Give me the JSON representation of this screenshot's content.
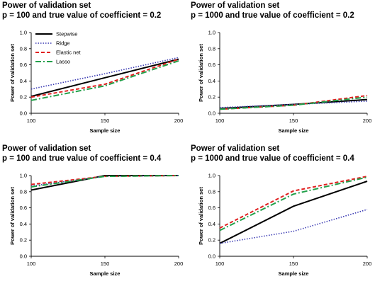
{
  "series_styles": [
    {
      "name": "Stepwise",
      "color": "#000000",
      "dash": "none",
      "width": 2
    },
    {
      "name": "Ridge",
      "color": "#3b3bb3",
      "dash": "1.5,2",
      "width": 1.6
    },
    {
      "name": "Elastic net",
      "color": "#e02020",
      "dash": "5,3",
      "width": 2
    },
    {
      "name": "Lasso",
      "color": "#22a04a",
      "dash": "8,3,2,3",
      "width": 2
    }
  ],
  "chart_data": [
    {
      "type": "line",
      "title": "Power of validation set",
      "subtitle": "p = 100 and true value of coefficient = 0.2",
      "xlabel": "Sample size",
      "ylabel": "Power of validation set",
      "x": [
        100,
        150,
        200
      ],
      "xlim": [
        100,
        200
      ],
      "ylim": [
        0,
        1.0
      ],
      "yticks": [
        "0.0",
        "0.2",
        "0.4",
        "0.6",
        "0.8",
        "1.0"
      ],
      "legend": "top-left",
      "series": [
        {
          "name": "Stepwise",
          "values": [
            0.21,
            0.44,
            0.67
          ]
        },
        {
          "name": "Ridge",
          "values": [
            0.3,
            0.49,
            0.69
          ]
        },
        {
          "name": "Elastic net",
          "values": [
            0.2,
            0.36,
            0.67
          ]
        },
        {
          "name": "Lasso",
          "values": [
            0.16,
            0.34,
            0.65
          ]
        }
      ]
    },
    {
      "type": "line",
      "title": "Power of validation set",
      "subtitle": "p = 1000 and true value of coefficient = 0.2",
      "xlabel": "Sample size",
      "ylabel": "Power of validation set",
      "x": [
        100,
        150,
        200
      ],
      "xlim": [
        100,
        200
      ],
      "ylim": [
        0,
        1.0
      ],
      "yticks": [
        "0.0",
        "0.2",
        "0.4",
        "0.6",
        "0.8",
        "1.0"
      ],
      "legend": "none",
      "series": [
        {
          "name": "Stepwise",
          "values": [
            0.06,
            0.11,
            0.17
          ]
        },
        {
          "name": "Ridge",
          "values": [
            0.07,
            0.11,
            0.15
          ]
        },
        {
          "name": "Elastic net",
          "values": [
            0.05,
            0.1,
            0.22
          ]
        },
        {
          "name": "Lasso",
          "values": [
            0.05,
            0.1,
            0.2
          ]
        }
      ]
    },
    {
      "type": "line",
      "title": "Power of validation set",
      "subtitle": "p = 100 and true value of coefficient = 0.4",
      "xlabel": "Sample size",
      "ylabel": "Power of validation set",
      "x": [
        100,
        150,
        200
      ],
      "xlim": [
        100,
        200
      ],
      "ylim": [
        0,
        1.0
      ],
      "yticks": [
        "0.0",
        "0.2",
        "0.4",
        "0.6",
        "0.8",
        "1.0"
      ],
      "legend": "none",
      "series": [
        {
          "name": "Stepwise",
          "values": [
            0.82,
            1.0,
            1.0
          ]
        },
        {
          "name": "Ridge",
          "values": [
            0.87,
            0.99,
            1.0
          ]
        },
        {
          "name": "Elastic net",
          "values": [
            0.89,
            0.99,
            1.0
          ]
        },
        {
          "name": "Lasso",
          "values": [
            0.86,
            0.99,
            1.0
          ]
        }
      ]
    },
    {
      "type": "line",
      "title": "Power of validation set",
      "subtitle": "p = 1000 and true value of coefficient = 0.4",
      "xlabel": "Sample size",
      "ylabel": "Power of validation set",
      "x": [
        100,
        150,
        200
      ],
      "xlim": [
        100,
        200
      ],
      "ylim": [
        0,
        1.0
      ],
      "yticks": [
        "0.0",
        "0.2",
        "0.4",
        "0.6",
        "0.8",
        "1.0"
      ],
      "legend": "none",
      "series": [
        {
          "name": "Stepwise",
          "values": [
            0.16,
            0.62,
            0.93
          ]
        },
        {
          "name": "Ridge",
          "values": [
            0.16,
            0.31,
            0.58
          ]
        },
        {
          "name": "Elastic net",
          "values": [
            0.35,
            0.81,
            0.99
          ]
        },
        {
          "name": "Lasso",
          "values": [
            0.32,
            0.77,
            0.98
          ]
        }
      ]
    }
  ]
}
